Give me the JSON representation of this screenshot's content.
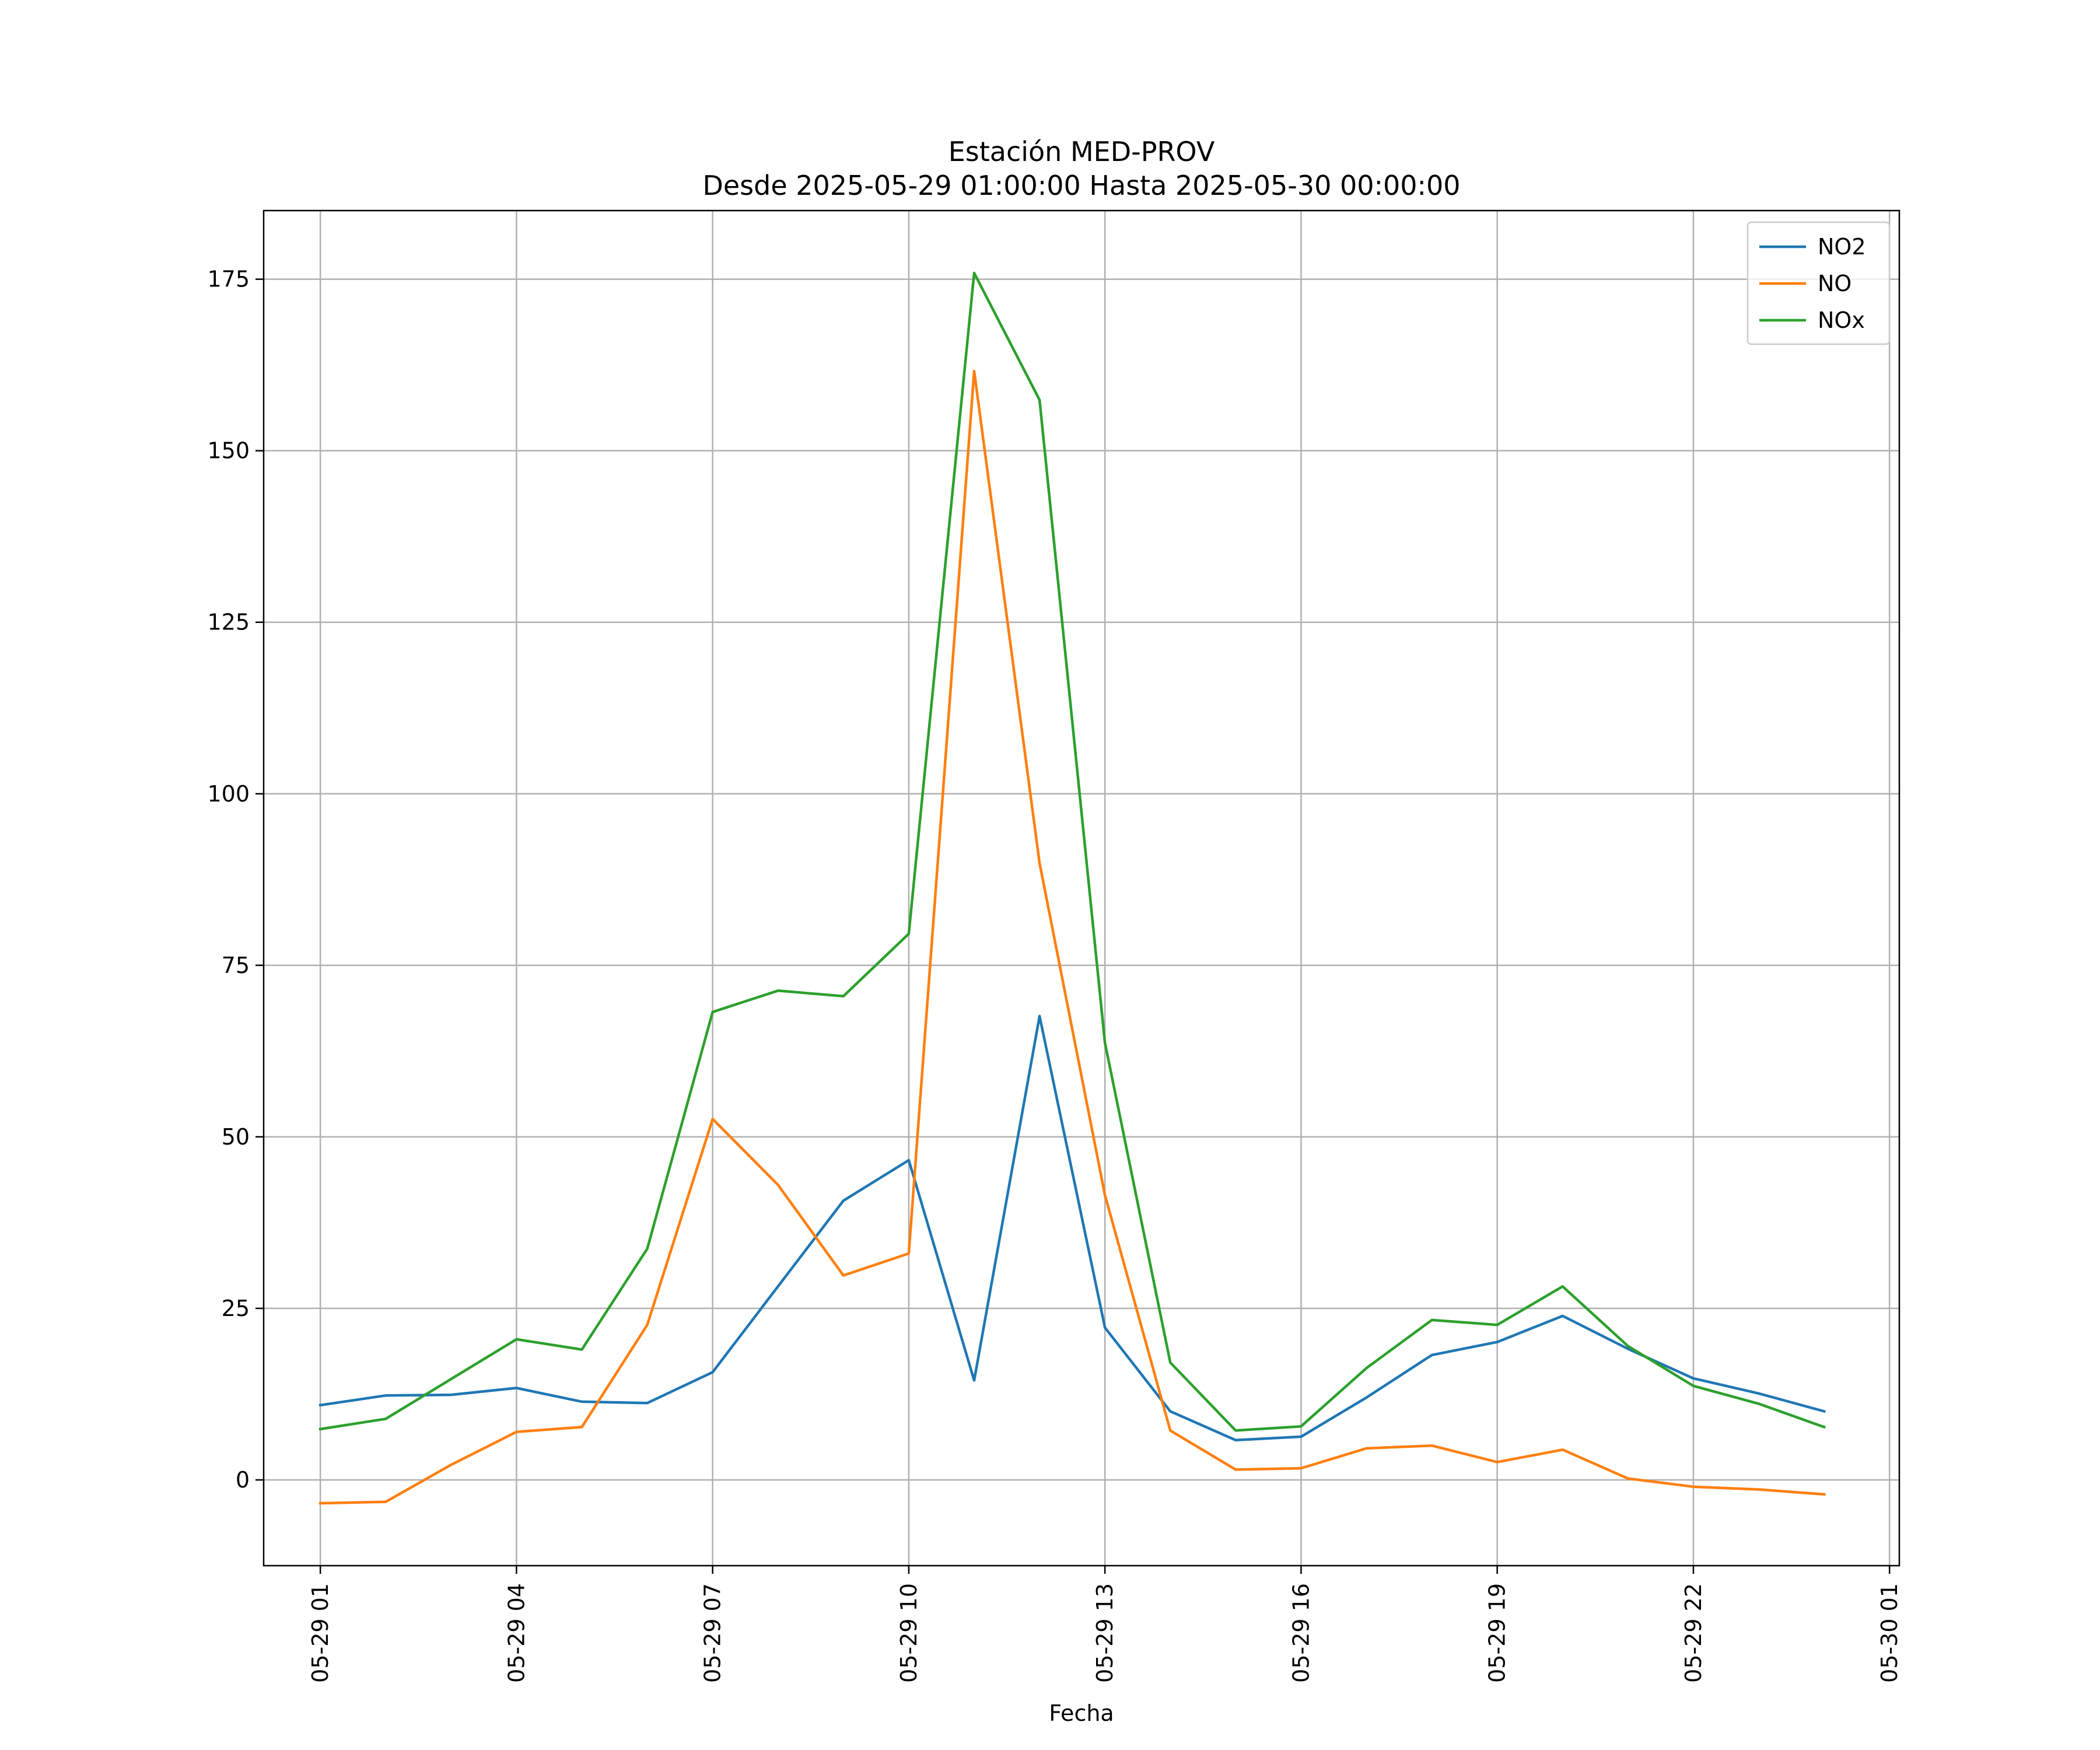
{
  "chart_data": {
    "type": "line",
    "title": "Estación MED-PROV",
    "subtitle": "Desde 2025-05-29 01:00:00 Hasta 2025-05-30 00:00:00",
    "xlabel": "Fecha",
    "ylabel": "",
    "x_unit": "hour",
    "x": [
      "05-29 01",
      "05-29 02",
      "05-29 03",
      "05-29 04",
      "05-29 05",
      "05-29 06",
      "05-29 07",
      "05-29 08",
      "05-29 09",
      "05-29 10",
      "05-29 11",
      "05-29 12",
      "05-29 13",
      "05-29 14",
      "05-29 15",
      "05-29 16",
      "05-29 17",
      "05-29 18",
      "05-29 19",
      "05-29 20",
      "05-29 21",
      "05-29 22",
      "05-29 23",
      "05-30 00"
    ],
    "x_ticks": [
      "05-29 01",
      "05-29 04",
      "05-29 07",
      "05-29 10",
      "05-29 13",
      "05-29 16",
      "05-29 19",
      "05-29 22",
      "05-30 01"
    ],
    "xlim": [
      "05-29 00:08",
      "05-30 01:09"
    ],
    "ylim": [
      -12.5,
      185
    ],
    "y_ticks": [
      0,
      25,
      50,
      75,
      100,
      125,
      150,
      175
    ],
    "grid": true,
    "legend_position": "top-right",
    "series": [
      {
        "name": "NO2",
        "color": "#1f77b4",
        "values": [
          10.9,
          12.3,
          12.4,
          13.4,
          11.4,
          11.2,
          15.7,
          28.2,
          40.7,
          46.6,
          14.5,
          67.6,
          22.2,
          10.0,
          5.8,
          6.3,
          12.0,
          18.2,
          20.1,
          23.9,
          19.1,
          14.8,
          12.6,
          10.0
        ]
      },
      {
        "name": "NO",
        "color": "#ff7f0e",
        "values": [
          -3.4,
          -3.2,
          2.2,
          7.0,
          7.7,
          22.6,
          52.6,
          43.0,
          29.8,
          33.0,
          161.6,
          89.9,
          41.5,
          7.2,
          1.5,
          1.7,
          4.6,
          5.0,
          2.6,
          4.4,
          0.2,
          -1.0,
          -1.4,
          -2.1
        ]
      },
      {
        "name": "NOx",
        "color": "#2ca02c",
        "values": [
          7.4,
          8.9,
          14.7,
          20.5,
          19.0,
          33.7,
          68.2,
          71.3,
          70.5,
          79.6,
          175.9,
          157.4,
          63.7,
          17.1,
          7.2,
          7.8,
          16.3,
          23.3,
          22.6,
          28.2,
          19.5,
          13.7,
          11.1,
          7.7
        ]
      }
    ]
  }
}
